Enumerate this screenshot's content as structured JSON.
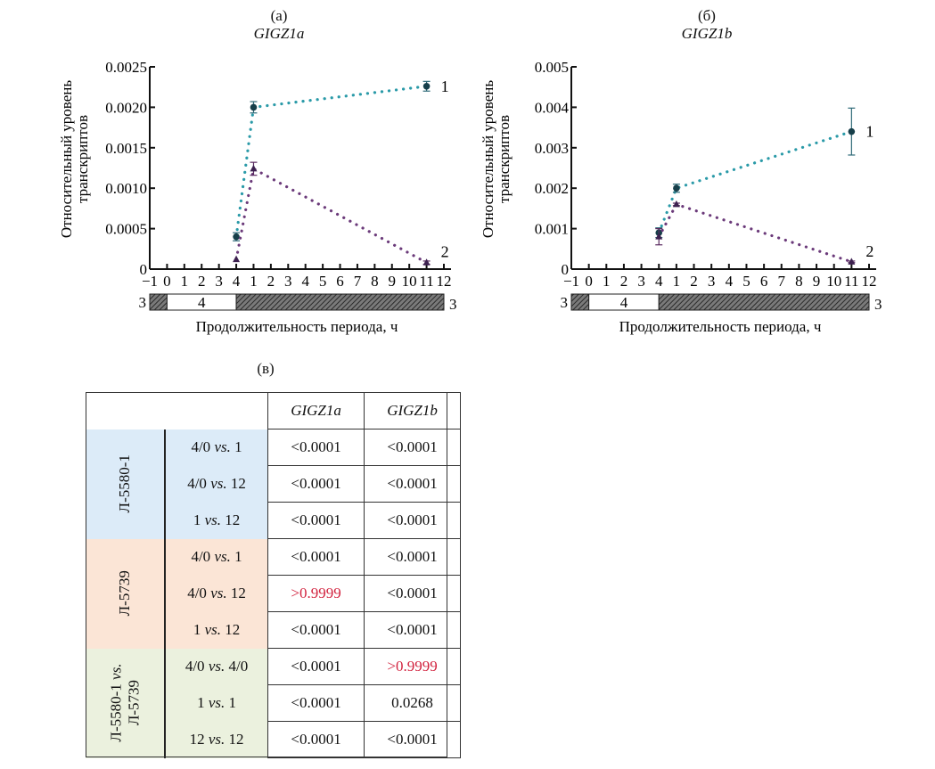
{
  "panels": {
    "a": {
      "label": "(а)",
      "gene": "GIGZ1a"
    },
    "b": {
      "label": "(б)",
      "gene": "GIGZ1b"
    },
    "c": {
      "label": "(в)"
    }
  },
  "chart_data": [
    {
      "type": "line",
      "title": "GIGZ1a",
      "panel": "(а)",
      "ylabel": "Относительный уровень транскриптов",
      "xlabel": "Продолжительность периода, ч",
      "ylim": [
        0,
        0.0025
      ],
      "yticks": [
        "0",
        "0.0005",
        "0.0010",
        "0.0015",
        "0.0020",
        "0.0025"
      ],
      "ytick_values": [
        0,
        0.0005,
        0.001,
        0.0015,
        0.002,
        0.0025
      ],
      "xtick_labels": [
        "−1",
        "0",
        "1",
        "2",
        "3",
        "4",
        "1",
        "2",
        "3",
        "4",
        "5",
        "6",
        "7",
        "8",
        "9",
        "10",
        "11",
        "12"
      ],
      "period_bar": {
        "left_label": "3",
        "middle_label": "4",
        "right_label": "3",
        "white_segment_ticks": [
          1,
          5
        ]
      },
      "x_positions": [
        5,
        6,
        16
      ],
      "x_point_labels": [
        "4",
        "1",
        "12"
      ],
      "series": [
        {
          "name": "1",
          "color": "#2a9aa8",
          "marker": "circle",
          "values": [
            0.0004,
            0.002,
            0.00226
          ],
          "errors": [
            5e-05,
            7e-05,
            6e-05
          ]
        },
        {
          "name": "2",
          "color": "#6b3a7a",
          "marker": "triangle",
          "values": [
            0.00012,
            0.00124,
            8e-05
          ],
          "errors": [
            0,
            8e-05,
            2e-05
          ]
        }
      ]
    },
    {
      "type": "line",
      "title": "GIGZ1b",
      "panel": "(б)",
      "ylabel": "Относительный уровень транскриптов",
      "xlabel": "Продолжительность периода, ч",
      "ylim": [
        0,
        0.005
      ],
      "yticks": [
        "0",
        "0.001",
        "0.002",
        "0.003",
        "0.004",
        "0.005"
      ],
      "ytick_values": [
        0,
        0.001,
        0.002,
        0.003,
        0.004,
        0.005
      ],
      "xtick_labels": [
        "−1",
        "0",
        "1",
        "2",
        "3",
        "4",
        "1",
        "2",
        "3",
        "4",
        "5",
        "6",
        "7",
        "8",
        "9",
        "10",
        "11",
        "12"
      ],
      "period_bar": {
        "left_label": "3",
        "middle_label": "4",
        "right_label": "3",
        "white_segment_ticks": [
          1,
          5
        ]
      },
      "x_positions": [
        5,
        6,
        16
      ],
      "x_point_labels": [
        "4",
        "1",
        "12"
      ],
      "series": [
        {
          "name": "1",
          "color": "#2a9aa8",
          "marker": "circle",
          "values": [
            0.0009,
            0.002,
            0.0034
          ],
          "errors": [
            0.00012,
            0.0001,
            0.00058
          ]
        },
        {
          "name": "2",
          "color": "#6b3a7a",
          "marker": "triangle",
          "values": [
            0.0008,
            0.0016,
            0.00018
          ],
          "errors": [
            0.0002,
            3e-05,
            2e-05
          ]
        }
      ]
    },
    {
      "type": "table",
      "panel": "(в)",
      "columns": [
        "",
        "",
        "GIGZ1a",
        "GIGZ1b"
      ],
      "groups": [
        {
          "name": "Л-5580-1",
          "color": "#dcebf8",
          "rows": [
            {
              "cmp_a": "4/0",
              "cmp_b": "1",
              "a": "<0.0001",
              "b": "<0.0001",
              "a_red": false,
              "b_red": false
            },
            {
              "cmp_a": "4/0",
              "cmp_b": "12",
              "a": "<0.0001",
              "b": "<0.0001",
              "a_red": false,
              "b_red": false
            },
            {
              "cmp_a": "1",
              "cmp_b": "12",
              "a": "<0.0001",
              "b": "<0.0001",
              "a_red": false,
              "b_red": false
            }
          ]
        },
        {
          "name": "Л-5739",
          "color": "#fbe5d6",
          "rows": [
            {
              "cmp_a": "4/0",
              "cmp_b": "1",
              "a": "<0.0001",
              "b": "<0.0001",
              "a_red": false,
              "b_red": false
            },
            {
              "cmp_a": "4/0",
              "cmp_b": "12",
              "a": ">0.9999",
              "b": "<0.0001",
              "a_red": true,
              "b_red": false
            },
            {
              "cmp_a": "1",
              "cmp_b": "12",
              "a": "<0.0001",
              "b": "<0.0001",
              "a_red": false,
              "b_red": false
            }
          ]
        },
        {
          "name_line1": "Л-5580-1 vs.",
          "name_line2": "Л-5739",
          "name": "Л-5580-1 vs. Л-5739",
          "color": "#ebf1de",
          "rows": [
            {
              "cmp_a": "4/0",
              "cmp_b": "4/0",
              "a": "<0.0001",
              "b": ">0.9999",
              "a_red": false,
              "b_red": true
            },
            {
              "cmp_a": "1",
              "cmp_b": "1",
              "a": "<0.0001",
              "b": "0.0268",
              "a_red": false,
              "b_red": false
            },
            {
              "cmp_a": "12",
              "cmp_b": "12",
              "a": "<0.0001",
              "b": "<0.0001",
              "a_red": false,
              "b_red": false
            }
          ]
        }
      ],
      "vs_label": "vs."
    }
  ]
}
